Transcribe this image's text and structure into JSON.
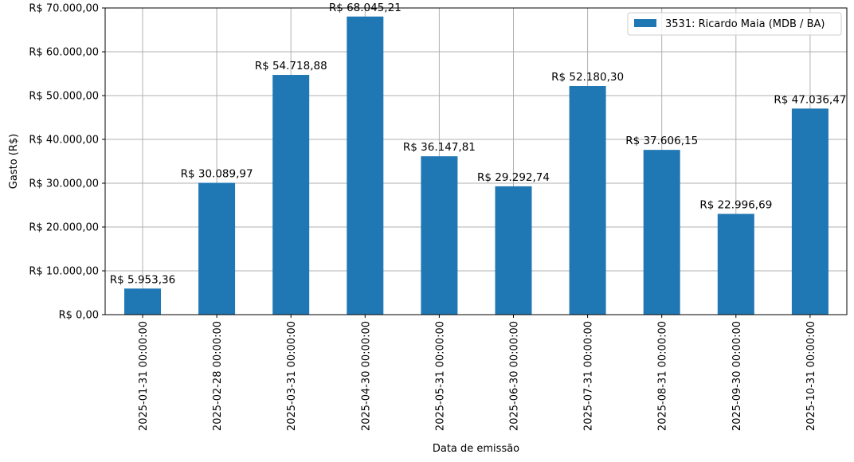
{
  "chart_data": {
    "type": "bar",
    "categories": [
      "2025-01-31 00:00:00",
      "2025-02-28 00:00:00",
      "2025-03-31 00:00:00",
      "2025-04-30 00:00:00",
      "2025-05-31 00:00:00",
      "2025-06-30 00:00:00",
      "2025-07-31 00:00:00",
      "2025-08-31 00:00:00",
      "2025-09-30 00:00:00",
      "2025-10-31 00:00:00"
    ],
    "series": [
      {
        "name": "3531: Ricardo Maia (MDB / BA)",
        "values": [
          5953.36,
          30089.97,
          54718.88,
          68045.21,
          36147.81,
          29292.74,
          52180.3,
          37606.15,
          22996.69,
          47036.47
        ],
        "labels": [
          "R$ 5.953,36",
          "R$ 30.089,97",
          "R$ 54.718,88",
          "R$ 68.045,21",
          "R$ 36.147,81",
          "R$ 29.292,74",
          "R$ 52.180,30",
          "R$ 37.606,15",
          "R$ 22.996,69",
          "R$ 47.036,47"
        ],
        "color": "#1f77b4"
      }
    ],
    "xlabel": "Data de emissão",
    "ylabel": "Gasto (R$)",
    "ylim": [
      0,
      70000
    ],
    "yticks": [
      0,
      10000,
      20000,
      30000,
      40000,
      50000,
      60000,
      70000
    ],
    "ytick_labels": [
      "R$ 0,00",
      "R$ 10.000,00",
      "R$ 20.000,00",
      "R$ 30.000,00",
      "R$ 40.000,00",
      "R$ 50.000,00",
      "R$ 60.000,00",
      "R$ 70.000,00"
    ],
    "grid": true,
    "legend_position": "top-right"
  }
}
